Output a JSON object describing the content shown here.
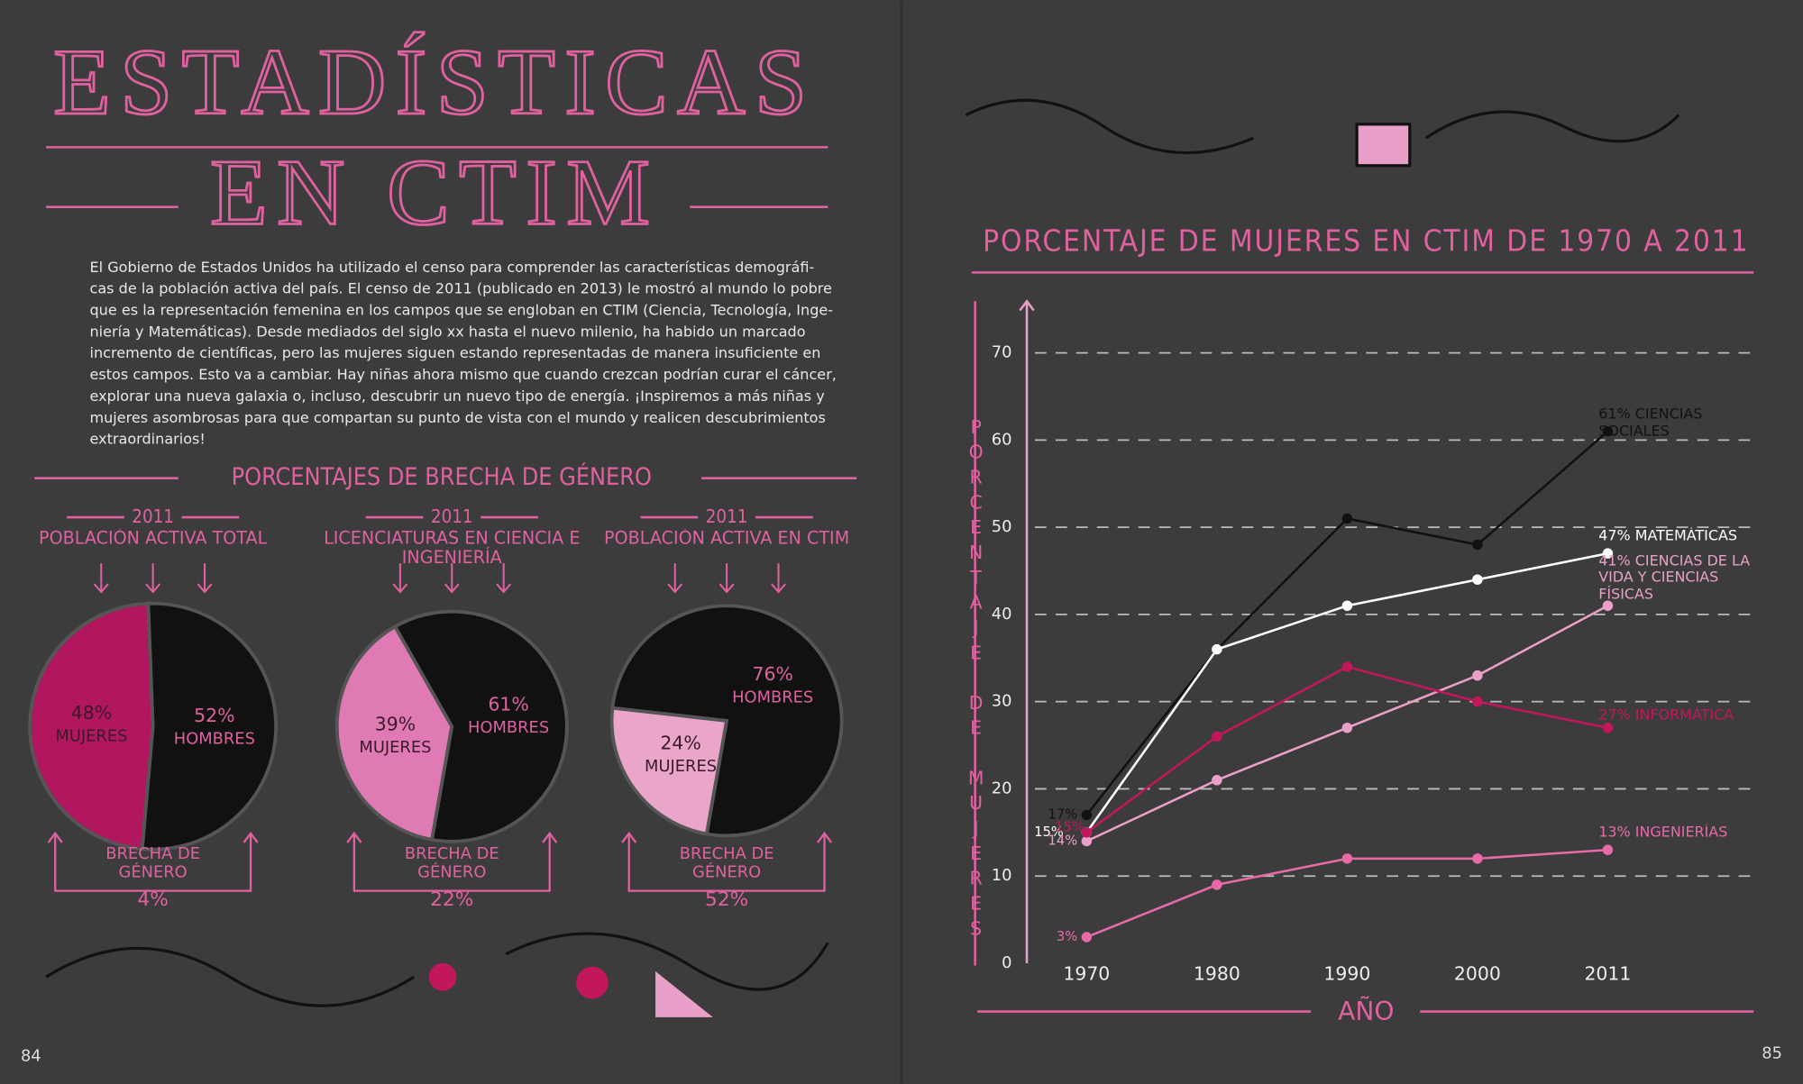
{
  "title": [
    "ESTADÍSTICAS",
    "EN CTIM"
  ],
  "intro": [
    "El Gobierno de Estados Unidos ha utilizado el censo para comprender las características demográfi-",
    "cas de la población activa del país. El censo de 2011 (publicado en 2013) le mostró al mundo lo pobre",
    "que es la representación femenina en los campos que se engloban en CTIM (Ciencia, Tecnología, Inge-",
    "niería y Matemáticas). Desde mediados del siglo xx hasta el nuevo milenio, ha habido un marcado",
    "incremento de científicas, pero las mujeres siguen estando representadas de manera insuficiente en",
    "estos campos. Esto va a cambiar. Hay niñas ahora mismo que cuando crezcan podrían curar el cáncer,",
    "explorar una nueva galaxia o, incluso, descubrir un nuevo tipo de energía. ¡Inspiremos a más niñas y",
    "mujeres asombrosas para que compartan su punto de vista con el mundo y realicen descubrimientos",
    "extraordinarios!"
  ],
  "section_title": "PORCENTAJES DE BRECHA DE GÉNERO",
  "pages": [
    "84",
    "85"
  ],
  "chart_data": [
    {
      "type": "pie",
      "title": "2011",
      "subtitle": "POBLACIÓN ACTIVA TOTAL",
      "categories": [
        "MUJERES",
        "HOMBRES"
      ],
      "values": [
        48,
        52
      ],
      "value_labels": [
        "48%",
        "52%"
      ],
      "colors": [
        "#b0175f",
        "#111111"
      ],
      "annotation": "BRECHA DE GÉNERO",
      "gap": 4,
      "gap_label": "4%"
    },
    {
      "type": "pie",
      "title": "2011",
      "subtitle": "LICENCIATURAS EN CIENCIA E INGENIERÍA",
      "categories": [
        "MUJERES",
        "HOMBRES"
      ],
      "values": [
        39,
        61
      ],
      "value_labels": [
        "39%",
        "61%"
      ],
      "colors": [
        "#e07ab4",
        "#111111"
      ],
      "annotation": "BRECHA DE GÉNERO",
      "gap": 22,
      "gap_label": "22%"
    },
    {
      "type": "pie",
      "title": "2011",
      "subtitle": "POBLACIÓN ACTIVA EN CTIM",
      "categories": [
        "MUJERES",
        "HOMBRES"
      ],
      "values": [
        24,
        76
      ],
      "value_labels": [
        "24%",
        "76%"
      ],
      "colors": [
        "#eaa6c9",
        "#111111"
      ],
      "annotation": "BRECHA DE GÉNERO",
      "gap": 52,
      "gap_label": "52%"
    },
    {
      "type": "line",
      "title": "PORCENTAJE DE MUJERES EN CTIM DE 1970 A 2011",
      "x_label": "AÑO",
      "y_label": "PORCENTAJE DE MUJERES",
      "categories": [
        "1970",
        "1980",
        "1990",
        "2000",
        "2011"
      ],
      "ylim": [
        0,
        75
      ],
      "yticks": [
        0,
        10,
        20,
        30,
        40,
        50,
        60,
        70
      ],
      "grid": true,
      "series": [
        {
          "name": "CIENCIAS SOCIALES",
          "color": "#111111",
          "values": [
            17,
            36,
            51,
            48,
            61
          ],
          "value_labels": [
            "17%",
            null,
            null,
            null,
            "61%"
          ]
        },
        {
          "name": "MATEMÁTICAS",
          "color": "#ffffff",
          "values": [
            15,
            36,
            41,
            44,
            47
          ],
          "value_labels": [
            "15%",
            null,
            null,
            null,
            "47%"
          ]
        },
        {
          "name": "CIENCIAS DE LA VIDA Y CIENCIAS FÍSICAS",
          "color": "#eaa0c8",
          "values": [
            14,
            21,
            27,
            33,
            41
          ],
          "value_labels": [
            "14%",
            null,
            null,
            null,
            "41%"
          ]
        },
        {
          "name": "INFORMÁTICA",
          "color": "#c2185b",
          "values": [
            15,
            26,
            34,
            30,
            27
          ],
          "value_labels": [
            "15%",
            null,
            null,
            null,
            "27%"
          ]
        },
        {
          "name": "INGENIERÍAS",
          "color": "#e86aa8",
          "values": [
            3,
            9,
            12,
            12,
            13
          ],
          "value_labels": [
            "3%",
            null,
            null,
            null,
            "13%"
          ]
        }
      ]
    }
  ]
}
